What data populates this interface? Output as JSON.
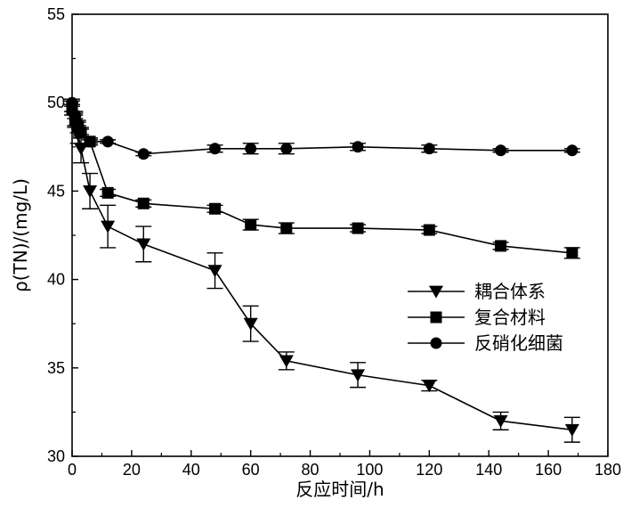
{
  "chart_data": {
    "type": "line",
    "xlabel": "反应时间/h",
    "ylabel": "ρ(TN)/(mg/L)",
    "xlim": [
      0,
      180
    ],
    "ylim": [
      30,
      55
    ],
    "xticks": [
      0,
      20,
      40,
      60,
      80,
      100,
      120,
      140,
      160,
      180
    ],
    "yticks": [
      30,
      35,
      40,
      45,
      50,
      55
    ],
    "grid": false,
    "legend_position": "center-right",
    "series": [
      {
        "name": "耦合体系",
        "marker": "triangle-down",
        "x": [
          0,
          1,
          2,
          3,
          6,
          12,
          24,
          48,
          60,
          72,
          96,
          120,
          144,
          168
        ],
        "y": [
          49.8,
          49.0,
          48.2,
          47.4,
          45.0,
          43.0,
          42.0,
          40.5,
          37.5,
          35.4,
          34.6,
          34.0,
          32.0,
          31.5
        ],
        "err": [
          0.3,
          0.4,
          0.5,
          0.8,
          1.0,
          1.2,
          1.0,
          1.0,
          1.0,
          0.5,
          0.7,
          0.3,
          0.5,
          0.7
        ]
      },
      {
        "name": "复合材料",
        "marker": "square",
        "x": [
          0,
          1,
          2,
          3,
          6,
          12,
          24,
          48,
          60,
          72,
          96,
          120,
          144,
          168
        ],
        "y": [
          49.6,
          49.0,
          48.6,
          48.3,
          47.8,
          44.9,
          44.3,
          44.0,
          43.1,
          42.9,
          42.9,
          42.8,
          41.9,
          41.5
        ],
        "err": [
          0.3,
          0.3,
          0.3,
          0.3,
          0.2,
          0.2,
          0.2,
          0.2,
          0.3,
          0.3,
          0.2,
          0.2,
          0.2,
          0.3
        ]
      },
      {
        "name": "反硝化细菌",
        "marker": "circle",
        "x": [
          0,
          1,
          2,
          3,
          6,
          12,
          24,
          48,
          60,
          72,
          96,
          120,
          144,
          168
        ],
        "y": [
          50.0,
          49.3,
          48.8,
          48.3,
          47.8,
          47.8,
          47.1,
          47.4,
          47.4,
          47.4,
          47.5,
          47.4,
          47.3,
          47.3
        ],
        "err": [
          0.2,
          0.2,
          0.2,
          0.2,
          0.1,
          0.1,
          0.1,
          0.2,
          0.3,
          0.3,
          0.2,
          0.2,
          0.1,
          0.1
        ]
      }
    ]
  }
}
